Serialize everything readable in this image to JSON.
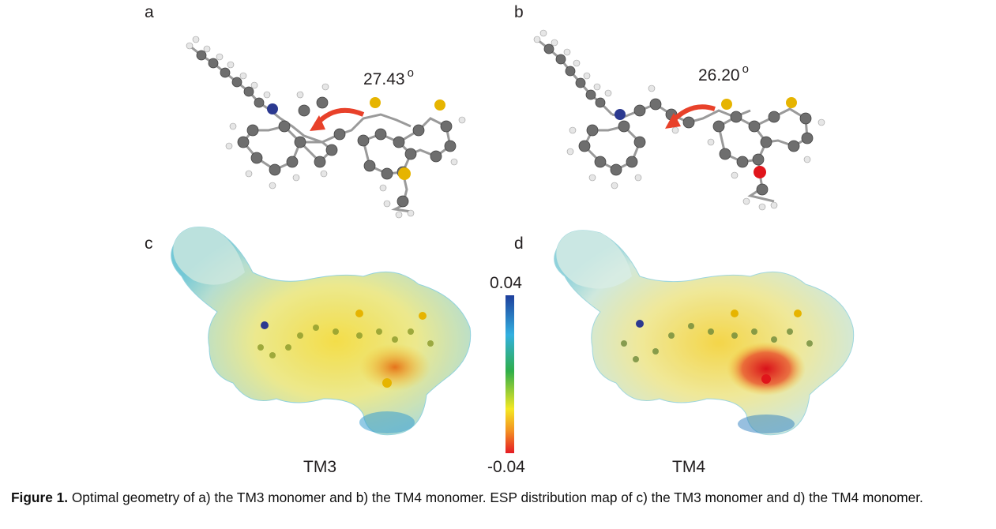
{
  "panels": {
    "a": {
      "label": "a",
      "angle": "27.43",
      "angle_unit": "o"
    },
    "b": {
      "label": "b",
      "angle": "26.20",
      "angle_unit": "o"
    },
    "c": {
      "label": "c",
      "name": "TM3"
    },
    "d": {
      "label": "d",
      "name": "TM4"
    }
  },
  "colorscale": {
    "max": "0.04",
    "min": "-0.04"
  },
  "caption": {
    "lead": "Figure 1.",
    "text": "Optimal geometry of a) the TM3 monomer and b) the TM4 monomer. ESP distribution map of c) the TM3 monomer and d) the TM4 monomer."
  },
  "colors": {
    "carbon": "#6e6e6e",
    "hydrogen": "#e6e6e6",
    "nitrogen": "#2b3990",
    "sulfur": "#e6b400",
    "oxygen": "#e0151b",
    "arrow": "#e8412a"
  }
}
